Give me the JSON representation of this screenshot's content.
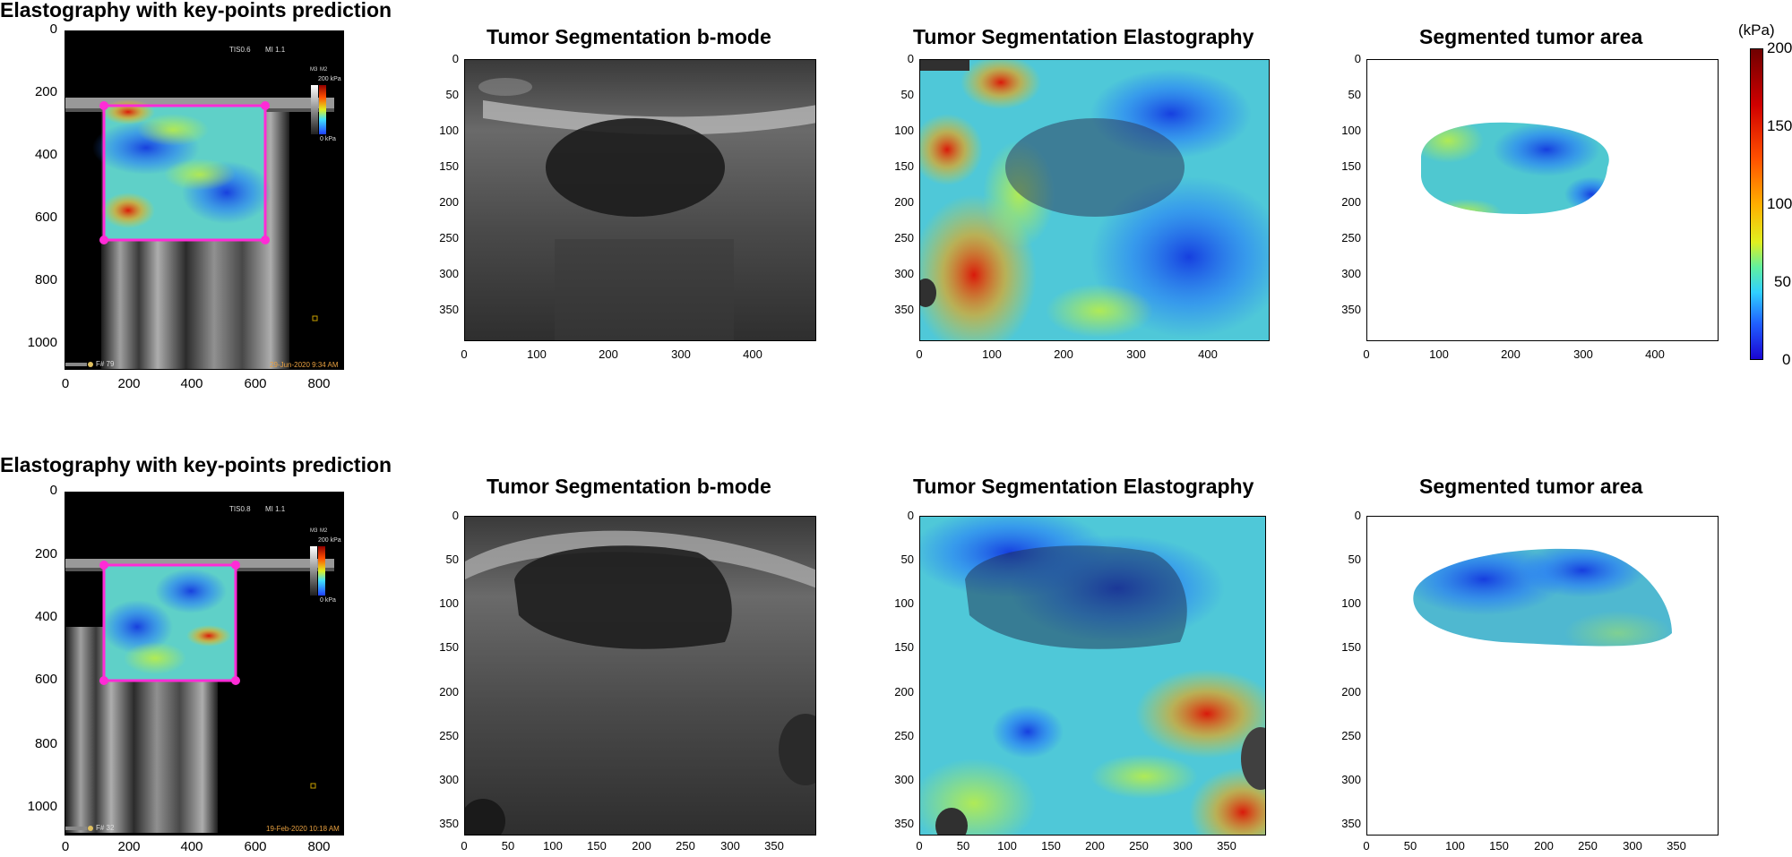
{
  "colors": {
    "keypoint": "#ff2bd6",
    "cmap": [
      "#0000c8",
      "#2060ff",
      "#30c8ff",
      "#40f0c0",
      "#c8f040",
      "#ffd000",
      "#ff7000",
      "#e01000",
      "#800000"
    ]
  },
  "rows": [
    {
      "panel1": {
        "title": "Elastography with key-points prediction",
        "yticks": [
          "0",
          "200",
          "400",
          "600",
          "800",
          "1000"
        ],
        "xticks": [
          "0",
          "200",
          "400",
          "600",
          "800"
        ],
        "overlay": {
          "tis": "TIS0.6",
          "mi": "MI 1.1",
          "kpa": "200 kPa",
          "zero_kpa": "0 kPa",
          "frame": "F# 79",
          "date": "29-Jun-2020 9:34 AM",
          "m3": "M3",
          "m2": "M2"
        }
      },
      "panel2": {
        "title": "Tumor Segmentation b-mode",
        "yticks": [
          "0",
          "50",
          "100",
          "150",
          "200",
          "250",
          "300",
          "350"
        ],
        "xticks": [
          "0",
          "100",
          "200",
          "300",
          "400"
        ]
      },
      "panel3": {
        "title": "Tumor Segmentation Elastography",
        "yticks": [
          "0",
          "50",
          "100",
          "150",
          "200",
          "250",
          "300",
          "350"
        ],
        "xticks": [
          "0",
          "100",
          "200",
          "300",
          "400"
        ]
      },
      "panel4": {
        "title": "Segmented tumor area",
        "yticks": [
          "0",
          "50",
          "100",
          "150",
          "200",
          "250",
          "300",
          "350"
        ],
        "xticks": [
          "0",
          "100",
          "200",
          "300",
          "400"
        ]
      }
    },
    {
      "panel1": {
        "title": "Elastography with key-points prediction",
        "yticks": [
          "0",
          "200",
          "400",
          "600",
          "800",
          "1000"
        ],
        "xticks": [
          "0",
          "200",
          "400",
          "600",
          "800"
        ],
        "overlay": {
          "tis": "TIS0.8",
          "mi": "MI 1.1",
          "kpa": "200 kPa",
          "zero_kpa": "0 kPa",
          "frame": "F# 32",
          "date": "19-Feb-2020 10:18 AM",
          "m3": "M3",
          "m2": "M2"
        }
      },
      "panel2": {
        "title": "Tumor Segmentation b-mode",
        "yticks": [
          "0",
          "50",
          "100",
          "150",
          "200",
          "250",
          "300",
          "350"
        ],
        "xticks": [
          "0",
          "50",
          "100",
          "150",
          "200",
          "250",
          "300",
          "350"
        ]
      },
      "panel3": {
        "title": "Tumor Segmentation Elastography",
        "yticks": [
          "0",
          "50",
          "100",
          "150",
          "200",
          "250",
          "300",
          "350"
        ],
        "xticks": [
          "0",
          "50",
          "100",
          "150",
          "200",
          "250",
          "300",
          "350"
        ]
      },
      "panel4": {
        "title": "Segmented tumor area",
        "yticks": [
          "0",
          "50",
          "100",
          "150",
          "200",
          "250",
          "300",
          "350"
        ],
        "xticks": [
          "0",
          "50",
          "100",
          "150",
          "200",
          "250",
          "300",
          "350"
        ]
      }
    }
  ],
  "colorbar": {
    "unit": "(kPa)",
    "ticks": [
      "200",
      "150",
      "100",
      "50",
      "0"
    ]
  }
}
